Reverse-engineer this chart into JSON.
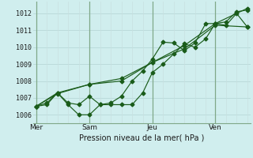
{
  "xlabel": "Pression niveau de la mer( hPa )",
  "bg_color": "#d0eeee",
  "grid_color_h": "#b8d8d8",
  "grid_color_v": "#c8e0e0",
  "grid_color_day": "#80a888",
  "line_color": "#1a5c1a",
  "ylim": [
    1005.5,
    1012.7
  ],
  "xlim": [
    0,
    10.2
  ],
  "day_labels": [
    "Mer",
    "Sam",
    "Jeu",
    "Ven"
  ],
  "day_positions": [
    0.15,
    2.65,
    5.6,
    8.55
  ],
  "day_vlines": [
    0.15,
    2.65,
    5.6,
    8.55
  ],
  "yticks": [
    1006,
    1007,
    1008,
    1009,
    1010,
    1011,
    1012
  ],
  "vgrid_x": [
    0.15,
    0.65,
    1.15,
    1.65,
    2.15,
    2.65,
    3.15,
    3.65,
    4.15,
    4.65,
    5.15,
    5.6,
    6.1,
    6.6,
    7.1,
    7.6,
    8.1,
    8.55,
    9.05,
    9.55,
    10.05
  ],
  "series1_x": [
    0.15,
    0.65,
    1.15,
    1.65,
    2.15,
    2.65,
    3.15,
    3.65,
    4.15,
    4.65,
    5.15,
    5.6,
    6.1,
    6.6,
    7.1,
    7.6,
    8.1,
    8.55,
    9.05,
    9.55,
    10.05
  ],
  "series1_y": [
    1006.5,
    1006.7,
    1007.3,
    1006.7,
    1006.6,
    1007.1,
    1006.6,
    1006.6,
    1006.6,
    1006.6,
    1007.3,
    1008.5,
    1009.0,
    1009.6,
    1010.2,
    1010.0,
    1010.5,
    1011.4,
    1011.5,
    1012.1,
    1012.2
  ],
  "series2_x": [
    0.15,
    0.65,
    1.15,
    1.65,
    2.15,
    2.65,
    3.15,
    3.65,
    4.15,
    4.65,
    5.15,
    5.6,
    6.1,
    6.6,
    7.1,
    7.6,
    8.1,
    8.55,
    9.05,
    9.55,
    10.05
  ],
  "series2_y": [
    1006.5,
    1006.6,
    1007.3,
    1006.6,
    1006.0,
    1006.0,
    1006.6,
    1006.7,
    1007.1,
    1008.0,
    1008.6,
    1009.3,
    1010.3,
    1010.25,
    1009.8,
    1010.25,
    1011.4,
    1011.4,
    1011.3,
    1012.0,
    1011.2
  ],
  "series3_x": [
    0.15,
    1.15,
    2.65,
    4.15,
    5.6,
    7.1,
    8.55,
    10.05
  ],
  "series3_y": [
    1006.5,
    1007.3,
    1007.8,
    1008.0,
    1009.1,
    1010.1,
    1011.4,
    1012.3
  ],
  "series4_x": [
    0.15,
    1.15,
    2.65,
    4.15,
    5.6,
    7.1,
    8.55,
    10.05
  ],
  "series4_y": [
    1006.5,
    1007.25,
    1007.8,
    1008.15,
    1009.1,
    1009.9,
    1011.3,
    1011.2
  ]
}
